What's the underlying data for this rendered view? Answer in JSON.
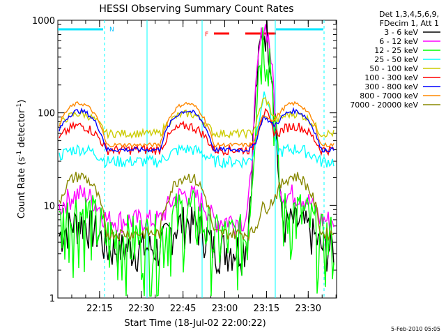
{
  "chart_data": {
    "type": "line",
    "title": "HESSI Observing Summary Count Rates",
    "xlabel": "Start Time (18-Jul-02 22:00:22)",
    "ylabel_main": "Count Rate (s",
    "ylabel_sup1": "-1",
    "ylabel_mid": " detector",
    "ylabel_sup2": "-1",
    "ylabel_end": ")",
    "y_scale": "log",
    "ylim": [
      1,
      1000
    ],
    "xlim_minutes": [
      22.0,
      23.67
    ],
    "x_ticks": [
      {
        "label": "22:15",
        "value": 22.25
      },
      {
        "label": "22:30",
        "value": 22.5
      },
      {
        "label": "22:45",
        "value": 22.75
      },
      {
        "label": "23:00",
        "value": 23.0
      },
      {
        "label": "23:15",
        "value": 23.25
      },
      {
        "label": "23:30",
        "value": 23.5
      }
    ],
    "y_ticks": [
      {
        "label": "1",
        "value": 1
      },
      {
        "label": "10",
        "value": 10
      },
      {
        "label": "100",
        "value": 100
      },
      {
        "label": "1000",
        "value": 1000
      }
    ],
    "legend_header": [
      "Det 1,3,4,5,6,9,",
      "FDecim 1, Att 1"
    ],
    "series": [
      {
        "name": "3 - 6 keV",
        "color": "#000000"
      },
      {
        "name": "6 - 12 keV",
        "color": "#ff00ff"
      },
      {
        "name": "12 - 25 keV",
        "color": "#00ff00"
      },
      {
        "name": "25 - 50 keV",
        "color": "#00ffff"
      },
      {
        "name": "50 - 100 keV",
        "color": "#cccc00"
      },
      {
        "name": "100 - 300 keV",
        "color": "#ff0000"
      },
      {
        "name": "300 - 800 keV",
        "color": "#0000ff"
      },
      {
        "name": "800 - 7000 keV",
        "color": "#ff8800"
      },
      {
        "name": "7000 - 20000 keV",
        "color": "#888800"
      }
    ],
    "markers": {
      "night_label": "N",
      "flare_label": "F"
    },
    "footer_date": "5-Feb-2010 05:05"
  }
}
